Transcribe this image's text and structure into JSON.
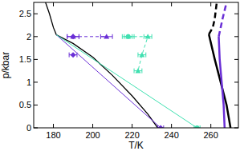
{
  "chart_data": {
    "type": "line",
    "x_label": "T/K",
    "y_label": "p/kbar",
    "xlim": [
      170,
      274
    ],
    "ylim": [
      0,
      2.75
    ],
    "xticks": [
      180,
      200,
      220,
      240,
      260
    ],
    "yticks": [
      0,
      0.5,
      1,
      1.5,
      2,
      2.5
    ],
    "series": [
      {
        "color": "#000000",
        "line_style": "solid",
        "marker": "none",
        "x": [
          176,
          178,
          180,
          181.5,
          190,
          200,
          210,
          220,
          228,
          233
        ],
        "values": [
          2.75,
          2.5,
          2.2,
          2.04,
          1.85,
          1.55,
          1.15,
          0.7,
          0.3,
          0
        ]
      },
      {
        "color": "#6a2fd6",
        "line_style": "solid",
        "marker": "none",
        "x": [
          181.5,
          234.5
        ],
        "values": [
          2.04,
          0
        ]
      },
      {
        "color": "#3fe0b0",
        "line_style": "solid",
        "marker": "none",
        "x": [
          181.5,
          253
        ],
        "values": [
          2.04,
          0
        ]
      },
      {
        "color": "#6a2fd6",
        "line_style": "dashed",
        "marker": "triangle",
        "x": [
          190,
          207
        ],
        "values": [
          2.0,
          2.0
        ],
        "error": [
          3,
          3
        ]
      },
      {
        "color": "#6a2fd6",
        "line_style": "none",
        "marker": "diamond",
        "x": [
          190,
          190,
          234.5
        ],
        "values": [
          2.0,
          1.6,
          0
        ],
        "error": [
          3,
          2,
          1.5
        ]
      },
      {
        "color": "#3fe0b0",
        "line_style": "dashed",
        "marker": "triangle",
        "x": [
          218,
          228,
          225,
          223
        ],
        "values": [
          2.0,
          2.0,
          1.6,
          1.25
        ],
        "error": [
          3,
          2,
          2,
          2
        ]
      },
      {
        "color": "#3fe0b0",
        "line_style": "none",
        "marker": "circle",
        "x": [
          218,
          253
        ],
        "values": [
          2.0,
          0
        ],
        "error": [
          2,
          1.5
        ]
      },
      {
        "color": "#000000",
        "line_style": "solid",
        "marker": "none",
        "x": [
          259,
          262,
          265,
          268,
          270
        ],
        "values": [
          2.05,
          1.5,
          1.0,
          0.5,
          0
        ]
      },
      {
        "color": "#000000",
        "line_style": "dashed",
        "marker": "none",
        "x": [
          259,
          261,
          262,
          263
        ],
        "values": [
          2.05,
          2.2,
          2.4,
          2.75
        ]
      },
      {
        "color": "#6a2fd6",
        "line_style": "solid",
        "marker": "none",
        "x": [
          264,
          264.5,
          265.5,
          266.5,
          267
        ],
        "values": [
          2.0,
          1.5,
          1.0,
          0.5,
          0
        ]
      },
      {
        "color": "#6a2fd6",
        "line_style": "dashed",
        "marker": "none",
        "x": [
          264,
          266,
          268
        ],
        "values": [
          2.0,
          2.4,
          2.75
        ]
      }
    ]
  }
}
